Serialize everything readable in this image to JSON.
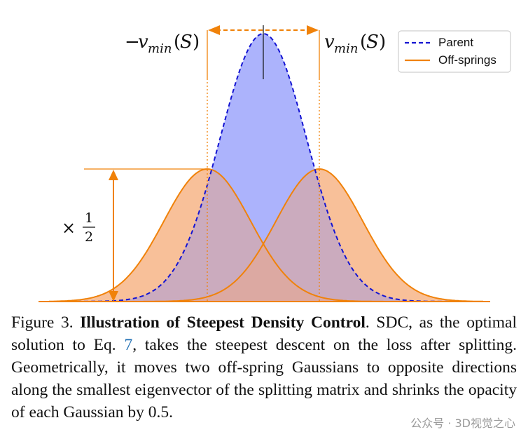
{
  "figure": {
    "legend": {
      "parent": "Parent",
      "offsprings": "Off-springs"
    },
    "colors": {
      "parent_line": "#1414d2",
      "parent_fill": "#aab0fa",
      "offspring_line": "#f0820a",
      "offspring_fill": "#fdd2aa",
      "overlap": "#c8a0b4"
    }
  },
  "caption": {
    "label": "Figure 3.",
    "title": "Illustration of Steepest Density Control",
    "text_before_ref": ". SDC, as the optimal solution to Eq. ",
    "ref": "7",
    "text_after_ref": ", takes the steepest descent on the loss after splitting. Geometrically, it moves two off-spring Gaussians to opposite directions along the smallest eigenvector of the splitting matrix and shrinks the opacity of each Gaussian by 0.5."
  },
  "watermark": "公众号 · 3D视觉之心"
}
